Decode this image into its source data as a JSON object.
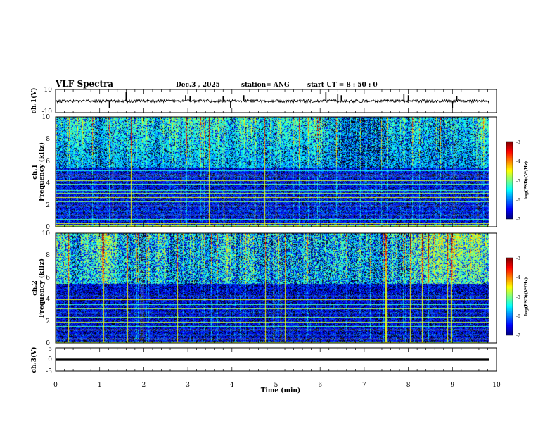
{
  "header": {
    "title": "VLF Spectra",
    "date": "Dec.3  , 2025",
    "station": "station= ANG",
    "start_ut": "start  UT  =   8  : 50 : 0"
  },
  "chart_data": [
    {
      "id": "ch1_waveform",
      "type": "line",
      "ylabel": "ch.1(V)",
      "ylim": [
        -10,
        10
      ],
      "yticks": [
        "10",
        "-10"
      ],
      "xlim": [
        0,
        10
      ],
      "xlabel": "",
      "baseline": 0,
      "noise_amplitude": 1.3,
      "spikes": [
        {
          "t": 1.22,
          "v": -6
        },
        {
          "t": 1.6,
          "v": 8
        },
        {
          "t": 2.95,
          "v": 5
        },
        {
          "t": 3.05,
          "v": 4
        },
        {
          "t": 3.8,
          "v": 4
        },
        {
          "t": 3.97,
          "v": -6
        },
        {
          "t": 4.27,
          "v": 5
        },
        {
          "t": 6.13,
          "v": 8
        },
        {
          "t": 6.4,
          "v": 6
        },
        {
          "t": 6.48,
          "v": 5
        },
        {
          "t": 7.9,
          "v": 6
        },
        {
          "t": 8.0,
          "v": 5
        },
        {
          "t": 9.0,
          "v": -6
        },
        {
          "t": 9.1,
          "v": 4
        }
      ],
      "data_end": 9.83
    },
    {
      "id": "ch1_spectrogram",
      "type": "heatmap",
      "ylabel": "ch.1\nFrequency  (kHz)",
      "ylim": [
        0,
        10
      ],
      "yticks": [
        "0",
        "2",
        "4",
        "6",
        "8",
        "10"
      ],
      "xlim": [
        0,
        10
      ],
      "data_end": 9.83,
      "colorbar": {
        "label": "log(PSD)(V²/Hz)",
        "range": [
          -7,
          -3
        ],
        "ticks": [
          "-3",
          "-4",
          "-5",
          "-6",
          "-7"
        ]
      },
      "line_levels_khz": [
        0.35,
        0.7,
        1.1,
        1.45,
        1.9,
        2.3,
        2.7,
        3.05,
        3.35,
        3.9,
        4.2,
        4.55,
        4.75,
        5.1
      ],
      "line_strength": [
        -4.6,
        -5.2,
        -4.8,
        -5.3,
        -4.6,
        -5.0,
        -4.6,
        -4.9,
        -5.2,
        -5.1,
        -4.7,
        -5.0,
        -4.3,
        -5.4
      ],
      "noise_floor": -6.4,
      "upper_band_level": -6.0
    },
    {
      "id": "ch2_spectrogram",
      "type": "heatmap",
      "ylabel": "ch.2\nFrequency  (kHz)",
      "ylim": [
        0,
        10
      ],
      "yticks": [
        "0",
        "2",
        "4",
        "6",
        "8",
        "10"
      ],
      "xlim": [
        0,
        10
      ],
      "data_end": 9.83,
      "colorbar": {
        "label": "log(PSD)(V²/Hz)",
        "range": [
          -7,
          -3
        ],
        "ticks": [
          "-3",
          "-4",
          "-5",
          "-6",
          "-7"
        ]
      },
      "line_levels_khz": [
        0.4,
        0.8,
        1.2,
        1.55,
        1.95,
        2.35,
        2.75,
        3.15,
        3.55,
        3.95,
        4.3
      ],
      "line_strength": [
        -4.5,
        -5.1,
        -4.6,
        -5.2,
        -4.8,
        -5.0,
        -5.1,
        -4.9,
        -5.2,
        -4.6,
        -5.0
      ],
      "noise_floor": -6.5,
      "upper_band_level": -5.6
    },
    {
      "id": "ch3_waveform",
      "type": "line",
      "ylabel": "ch.3(V)",
      "ylim": [
        -5,
        5
      ],
      "yticks": [
        "5",
        "0",
        "-5"
      ],
      "xlim": [
        0,
        10
      ],
      "xlabel": "Time  (min)",
      "xticks": [
        "0",
        "1",
        "2",
        "3",
        "4",
        "5",
        "6",
        "7",
        "8",
        "9",
        "10"
      ],
      "baseline": 0,
      "band_halfwidth": 0.35,
      "data_end": 9.83
    }
  ]
}
